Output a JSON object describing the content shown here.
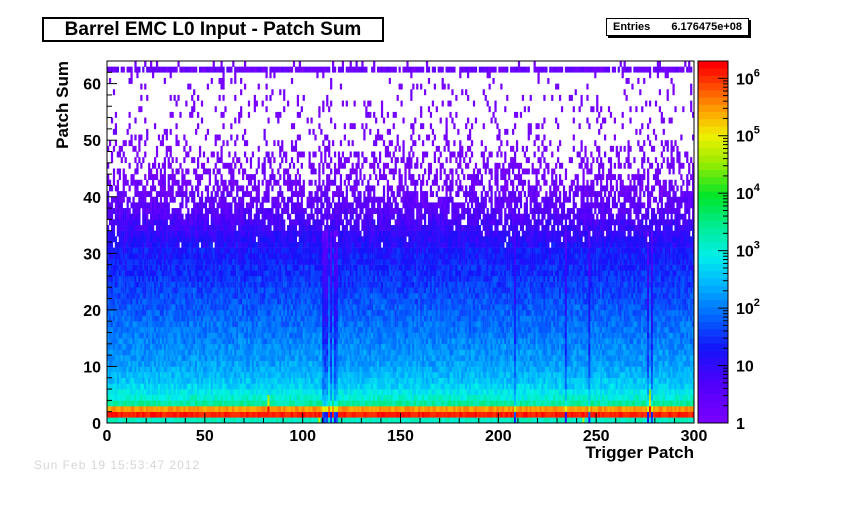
{
  "title": "Barrel EMC L0 Input - Patch Sum",
  "stats": {
    "label": "Entries",
    "value": "6.176475e+08"
  },
  "footer": {
    "timestamp": "Sun Feb 19 15:53:47 2012"
  },
  "chart_data": {
    "type": "heatmap",
    "title": "Barrel EMC L0 Input - Patch Sum",
    "xlabel": "Trigger Patch",
    "ylabel": "Patch Sum",
    "xlim": [
      0,
      300
    ],
    "ylim": [
      0,
      64
    ],
    "x_ticks": [
      0,
      50,
      100,
      150,
      200,
      250,
      300
    ],
    "y_ticks": [
      0,
      10,
      20,
      30,
      40,
      50,
      60
    ],
    "z_scale": "log",
    "zlim": [
      1,
      2000000
    ],
    "z_ticks": [
      {
        "value": 1,
        "label": "1"
      },
      {
        "value": 10,
        "label": "10"
      },
      {
        "value": 100,
        "label": "10",
        "exp": "2"
      },
      {
        "value": 1000,
        "label": "10",
        "exp": "3"
      },
      {
        "value": 10000,
        "label": "10",
        "exp": "4"
      },
      {
        "value": 100000,
        "label": "10",
        "exp": "5"
      },
      {
        "value": 1000000,
        "label": "10",
        "exp": "6"
      }
    ],
    "n_x_bins": 300,
    "n_y_bins": 64,
    "profile": {
      "description_free": true,
      "row_log10_counts": [
        3.2,
        6.2,
        5.6,
        3.4,
        3.1,
        2.9,
        2.7,
        2.6,
        2.5,
        2.4,
        2.3,
        2.25,
        2.2,
        2.15,
        2.1,
        2.05,
        2.0,
        1.95,
        1.9,
        1.85,
        1.8,
        1.75,
        1.7,
        1.65,
        1.6,
        1.55,
        1.5,
        1.45,
        1.4,
        1.35,
        1.3,
        1.2,
        1.1,
        1.0,
        0.9,
        0.8,
        0.7,
        0.6,
        0.5,
        0.42,
        0.35,
        0.28,
        0.22,
        0.18,
        0.14,
        0.1,
        0.08,
        0.06,
        0.05,
        0.04,
        0.03,
        0.025,
        0.02,
        0.02,
        0.015,
        0.015,
        0.01,
        0.01,
        0.01,
        0.01,
        0.01,
        0.01,
        0.3,
        0.05
      ],
      "row_occupancy": [
        1,
        1,
        1,
        1,
        1,
        1,
        1,
        1,
        1,
        1,
        1,
        1,
        1,
        1,
        1,
        1,
        1,
        1,
        1,
        1,
        1,
        1,
        1,
        1,
        1,
        1,
        1,
        1,
        1,
        1,
        1,
        0.98,
        0.97,
        0.95,
        0.92,
        0.88,
        0.84,
        0.8,
        0.75,
        0.7,
        0.64,
        0.58,
        0.52,
        0.46,
        0.4,
        0.35,
        0.3,
        0.27,
        0.24,
        0.21,
        0.18,
        0.16,
        0.14,
        0.13,
        0.12,
        0.11,
        0.1,
        0.1,
        0.09,
        0.09,
        0.08,
        0.08,
        0.85,
        0.1
      ],
      "hot_columns": [
        {
          "patch": 82,
          "rows": [
            2,
            3,
            4
          ]
        },
        {
          "patch": 116,
          "rows": [
            0,
            1
          ]
        },
        {
          "patch": 277,
          "rows": [
            2,
            3,
            4,
            5
          ]
        },
        {
          "patch": 108,
          "rows": [
            0,
            1
          ]
        },
        {
          "patch": 243,
          "rows": [
            0,
            1
          ]
        }
      ],
      "cold_columns": [
        110,
        111,
        112,
        114,
        116,
        117,
        208,
        234,
        246,
        276,
        278
      ]
    }
  }
}
